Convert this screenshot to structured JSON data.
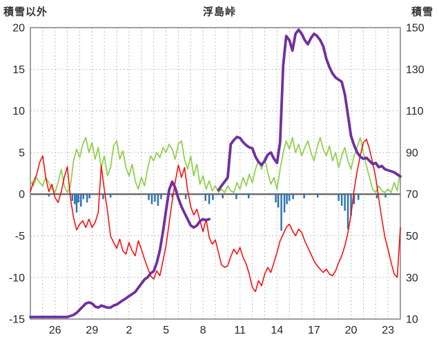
{
  "header": {
    "left_axis_title": "積雪以外",
    "title": "浮島峠",
    "right_axis_title": "積雪"
  },
  "chart_data": {
    "type": "line",
    "title": "浮島峠",
    "background": "#ffffff",
    "grid_color": "#bfbfbf",
    "axis_color": "#808080",
    "zero_line_color": "#6b6b6b",
    "text_color": "#262626",
    "x_axis": {
      "start_day": 0,
      "end_day": 30,
      "point_step_days": 0.25,
      "grid_step_days": 1,
      "tick_days": [
        2,
        5,
        8,
        11,
        14,
        17,
        20,
        23,
        26,
        29
      ],
      "tick_labels": [
        "26",
        "29",
        "2",
        "5",
        "8",
        "11",
        "14",
        "17",
        "20",
        "23"
      ]
    },
    "left_axis": {
      "label": "積雪以外",
      "min": -15,
      "max": 20,
      "tick_step": 5,
      "ticks": [
        20,
        15,
        10,
        5,
        0,
        -5,
        -10,
        -15
      ]
    },
    "right_axis": {
      "label": "積雪",
      "min": 10,
      "max": 150,
      "tick_step": 20,
      "ticks": [
        150,
        130,
        110,
        90,
        70,
        50,
        30,
        10
      ]
    },
    "series": [
      {
        "name": "wind",
        "color": "#92D050",
        "axis": "left",
        "width": 1.8,
        "values": [
          1.6,
          1.0,
          2.0,
          1.4,
          1.0,
          2.0,
          1.4,
          0.6,
          0.2,
          1.4,
          3.0,
          1.0,
          0.2,
          1.0,
          4.0,
          5.4,
          4.4,
          6.0,
          6.8,
          5.0,
          6.2,
          4.2,
          5.6,
          3.2,
          4.6,
          2.2,
          3.2,
          5.8,
          6.4,
          4.2,
          5.2,
          3.2,
          2.2,
          3.6,
          1.6,
          0.6,
          2.0,
          1.0,
          3.0,
          4.6,
          4.0,
          5.0,
          4.4,
          5.6,
          5.0,
          6.0,
          5.4,
          4.2,
          6.0,
          6.4,
          4.2,
          3.0,
          4.6,
          2.2,
          3.6,
          1.2,
          2.2,
          0.6,
          1.6,
          0.4,
          1.0,
          0.2,
          0.6,
          0.2,
          1.0,
          0.4,
          0.2,
          1.4,
          0.6,
          2.0,
          1.0,
          2.4,
          1.4,
          3.0,
          4.0,
          3.0,
          4.4,
          2.6,
          1.2,
          2.0,
          0.6,
          3.0,
          5.0,
          6.4,
          5.4,
          6.8,
          5.0,
          6.0,
          4.6,
          5.6,
          6.4,
          5.0,
          4.0,
          5.6,
          6.8,
          5.4,
          4.6,
          5.8,
          4.0,
          5.0,
          3.2,
          4.6,
          5.6,
          4.0,
          3.0,
          4.6,
          5.6,
          6.8,
          5.0,
          3.4,
          2.0,
          0.6,
          0.2,
          1.0,
          0.4,
          0.2,
          0.6,
          0.2,
          1.4,
          0.4,
          2.8
        ]
      },
      {
        "name": "temperature",
        "color": "#FF0000",
        "axis": "left",
        "width": 1.5,
        "values": [
          0.3,
          1.5,
          2.3,
          3.8,
          4.6,
          2.0,
          0.3,
          1.2,
          -0.4,
          -1.0,
          0.3,
          2.0,
          3.3,
          -0.5,
          -2.8,
          -4.3,
          -3.6,
          -3.2,
          -4.0,
          -3.0,
          -4.0,
          -3.4,
          -2.2,
          3.4,
          0.5,
          -2.0,
          -5.0,
          -5.8,
          -6.5,
          -5.4,
          -6.8,
          -7.2,
          -5.8,
          -6.8,
          -7.4,
          -5.6,
          -6.6,
          -7.8,
          -8.8,
          -9.8,
          -10.2,
          -9.2,
          -9.8,
          -8.0,
          -6.2,
          -3.5,
          -0.8,
          1.5,
          3.5,
          2.0,
          3.2,
          0.5,
          -1.5,
          -2.5,
          -1.8,
          -3.2,
          -4.5,
          -3.0,
          -5.2,
          -6.0,
          -5.5,
          -7.0,
          -8.5,
          -8.8,
          -8.6,
          -7.5,
          -6.6,
          -7.2,
          -6.4,
          -7.6,
          -8.4,
          -9.6,
          -11.2,
          -11.7,
          -10.4,
          -11.0,
          -9.6,
          -8.8,
          -9.4,
          -8.2,
          -7.0,
          -5.6,
          -4.8,
          -4.0,
          -3.6,
          -4.4,
          -5.0,
          -4.2,
          -4.6,
          -5.6,
          -6.4,
          -7.2,
          -8.0,
          -8.6,
          -9.0,
          -9.4,
          -9.0,
          -9.6,
          -9.8,
          -9.2,
          -8.2,
          -7.4,
          -6.2,
          -4.6,
          -2.5,
          0.5,
          2.8,
          4.6,
          6.2,
          6.6,
          5.4,
          3.8,
          2.0,
          -0.5,
          -3.0,
          -5.2,
          -6.6,
          -8.2,
          -9.6,
          -10.0,
          -4.0
        ]
      },
      {
        "name": "snow-depth",
        "color": "#7030A0",
        "axis": "right",
        "width": 3.8,
        "values": [
          11,
          11,
          11,
          11,
          11,
          11,
          11,
          11,
          11,
          11,
          11,
          11,
          11,
          11.5,
          12,
          13,
          14.5,
          16,
          17.5,
          18,
          17.5,
          16,
          15.5,
          16.5,
          16,
          15.5,
          15.5,
          16.5,
          17,
          18,
          19,
          20,
          21,
          22,
          23,
          25,
          27,
          29,
          30,
          32,
          33,
          37,
          43,
          52,
          62,
          72,
          76,
          73,
          68,
          64,
          61,
          58,
          55,
          54,
          55,
          57,
          58,
          57.5,
          58,
          null,
          null,
          72,
          74,
          76,
          78,
          94,
          96,
          97.5,
          97,
          95,
          93.5,
          92.5,
          92,
          88,
          85.5,
          84,
          86,
          89,
          90,
          87,
          85,
          95,
          132,
          146,
          144,
          139,
          147,
          149,
          147,
          144,
          142,
          145,
          147,
          146,
          144,
          141,
          135,
          131,
          128,
          126,
          125,
          124,
          118,
          108,
          98,
          93.5,
          90,
          88,
          87,
          87.5,
          86,
          84.5,
          85,
          83,
          83.5,
          82,
          81.5,
          81,
          80.5,
          79.5,
          78.5
        ]
      }
    ],
    "bars": {
      "name": "precipitation",
      "color": "#2E74B5",
      "axis": "left",
      "bar_width": 2.5,
      "points": [
        [
          1.5,
          -0.3
        ],
        [
          3.4,
          -0.8
        ],
        [
          3.6,
          -1.2
        ],
        [
          3.75,
          -2.2
        ],
        [
          3.9,
          -1.0
        ],
        [
          4.1,
          -1.5
        ],
        [
          4.3,
          -0.6
        ],
        [
          4.6,
          -1.0
        ],
        [
          4.8,
          -0.5
        ],
        [
          5.9,
          -0.6
        ],
        [
          6.5,
          -0.4
        ],
        [
          9.6,
          -0.7
        ],
        [
          9.85,
          -1.2
        ],
        [
          10.1,
          -0.9
        ],
        [
          10.35,
          -1.4
        ],
        [
          10.6,
          -0.6
        ],
        [
          11.5,
          -0.4
        ],
        [
          12.6,
          -0.6
        ],
        [
          14.2,
          -0.8
        ],
        [
          14.5,
          -1.2
        ],
        [
          14.8,
          -0.7
        ],
        [
          15.6,
          -0.5
        ],
        [
          16.7,
          -0.6
        ],
        [
          17.7,
          -0.5
        ],
        [
          19.9,
          -1.0
        ],
        [
          20.1,
          -1.6
        ],
        [
          20.35,
          -4.4
        ],
        [
          20.6,
          -2.2
        ],
        [
          20.8,
          -1.2
        ],
        [
          21.0,
          -0.8
        ],
        [
          21.3,
          -0.6
        ],
        [
          22.2,
          -0.5
        ],
        [
          23.3,
          -0.4
        ],
        [
          25.0,
          -0.8
        ],
        [
          25.25,
          -1.4
        ],
        [
          25.5,
          -2.0
        ],
        [
          25.75,
          -4.2
        ],
        [
          26.0,
          -2.6
        ],
        [
          26.25,
          -1.2
        ],
        [
          26.6,
          -0.7
        ],
        [
          28.1,
          -0.5
        ],
        [
          28.8,
          -0.4
        ]
      ]
    }
  }
}
